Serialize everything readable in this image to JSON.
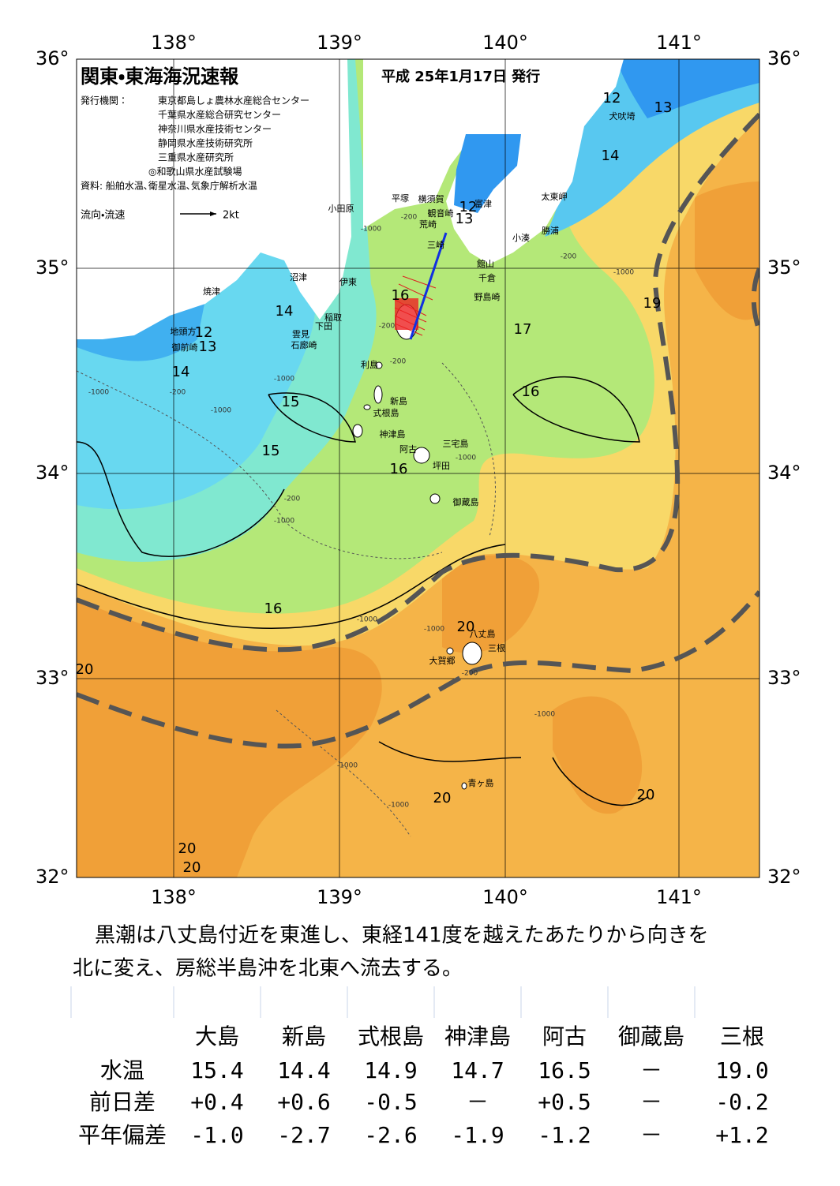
{
  "map": {
    "title": "関東・東海海況速報",
    "issue_date": "平成 25年1月17日 発行",
    "issuer_label": "発行機関：",
    "issuers": [
      "東京都島しょ農林水産総合センター",
      "千葉県水産総合研究センター",
      "神奈川県水産技術センター",
      "静岡県水産技術研究所",
      "三重県水産研究所",
      "◎和歌山県水産試験場"
    ],
    "source": "資料: 船舶水温､衛星水温､気象庁解析水温",
    "legend": {
      "label": "流向・流速",
      "scale": "2kt"
    },
    "longitudes": [
      "138°",
      "139°",
      "140°",
      "141°"
    ],
    "latitudes": [
      "36°",
      "35°",
      "34°",
      "33°",
      "32°"
    ],
    "places": [
      "小田原",
      "平塚",
      "横須賀",
      "観音崎",
      "富津",
      "荒崎",
      "三崎",
      "館山",
      "千倉",
      "野島崎",
      "太東岬",
      "勝浦",
      "小湊",
      "犬吠埼",
      "沼津",
      "伊東",
      "稲取",
      "下田",
      "雲見",
      "石廊崎",
      "焼津",
      "地頭方",
      "御前崎",
      "利島",
      "新島",
      "式根島",
      "神津島",
      "阿古",
      "三宅島",
      "坪田",
      "御蔵島",
      "八丈島",
      "三根",
      "大賀郷",
      "青ヶ島"
    ],
    "isotherm_labels": [
      12,
      13,
      14,
      12,
      13,
      19,
      14,
      16,
      12,
      13,
      14,
      17,
      16,
      15,
      15,
      16,
      16,
      20,
      20,
      20,
      20,
      20,
      20
    ],
    "depth_labels": [
      "-1000",
      "-200"
    ]
  },
  "description": [
    "黒潮は八丈島付近を東進し、東経141度を越えたあたりから向きを",
    "北に変え、房総半島沖を北東へ流去する。"
  ],
  "table": {
    "columns": [
      "大島",
      "新島",
      "式根島",
      "神津島",
      "阿古",
      "御蔵島",
      "三根"
    ],
    "rows": [
      {
        "label": "水温",
        "values": [
          "15.4",
          "14.4",
          "14.9",
          "14.7",
          "16.5",
          "－",
          "19.0"
        ]
      },
      {
        "label": "前日差",
        "values": [
          "+0.4",
          "+0.6",
          "-0.5",
          "－",
          "+0.5",
          "－",
          "-0.2"
        ]
      },
      {
        "label": "平年偏差",
        "values": [
          "-1.0",
          "-2.7",
          "-2.6",
          "-1.9",
          "-1.2",
          "－",
          "+1.2"
        ]
      }
    ]
  }
}
